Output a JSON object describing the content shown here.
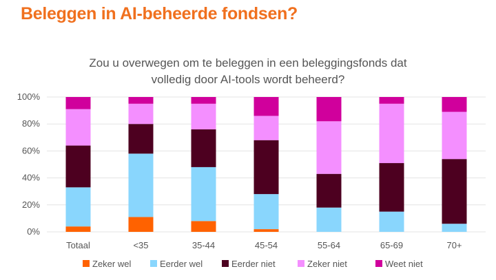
{
  "heading": "Beleggen in AI-beheerde fondsen?",
  "chart_data": {
    "type": "bar",
    "stacked": true,
    "title_lines": [
      "Zou u overwegen om te beleggen in een beleggingsfonds dat",
      "volledig door AI-tools wordt beheerd?"
    ],
    "categories": [
      "Totaal",
      "<35",
      "35-44",
      "45-54",
      "55-64",
      "65-69",
      "70+"
    ],
    "yticks": [
      "0%",
      "20%",
      "40%",
      "60%",
      "80%",
      "100%"
    ],
    "ylim": [
      0,
      100
    ],
    "grid": true,
    "legend_position": "bottom",
    "series": [
      {
        "name": "Zeker wel",
        "color": "#FF6200",
        "values": [
          4,
          11,
          8,
          2,
          0,
          0,
          0
        ]
      },
      {
        "name": "Eerder wel",
        "color": "#89D6FD",
        "values": [
          29,
          47,
          40,
          26,
          18,
          15,
          6
        ]
      },
      {
        "name": "Eerder niet",
        "color": "#4D0020",
        "values": [
          31,
          22,
          28,
          40,
          25,
          36,
          48
        ]
      },
      {
        "name": "Zeker niet",
        "color": "#F48FFF",
        "values": [
          27,
          15,
          19,
          18,
          39,
          44,
          35
        ]
      },
      {
        "name": "Weet niet",
        "color": "#D0009C",
        "values": [
          9,
          5,
          5,
          14,
          18,
          5,
          11
        ]
      }
    ]
  }
}
